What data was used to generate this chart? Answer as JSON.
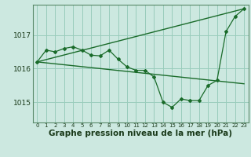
{
  "background_color": "#cce8e0",
  "grid_color": "#99ccbb",
  "line_color": "#1a6b2a",
  "xlabel": "Graphe pression niveau de la mer (hPa)",
  "xlabel_fontsize": 7.5,
  "ylabel_ticks": [
    1015,
    1016,
    1017
  ],
  "xtick_labels": [
    "0",
    "1",
    "2",
    "3",
    "4",
    "5",
    "6",
    "7",
    "8",
    "9",
    "10",
    "11",
    "12",
    "13",
    "14",
    "15",
    "16",
    "17",
    "18",
    "19",
    "20",
    "21",
    "22",
    "23"
  ],
  "xlim": [
    -0.5,
    23.5
  ],
  "ylim": [
    1014.4,
    1017.9
  ],
  "series1": [
    1016.2,
    1016.55,
    1016.5,
    1016.6,
    1016.65,
    1016.55,
    1016.4,
    1016.38,
    1016.55,
    1016.28,
    1016.05,
    1015.95,
    1015.95,
    1015.75,
    1015.0,
    1014.85,
    1015.1,
    1015.05,
    1015.05,
    1015.5,
    1015.65,
    1017.1,
    1017.55,
    1017.78
  ],
  "series2_x": [
    0,
    23
  ],
  "series2_y": [
    1016.2,
    1015.55
  ],
  "series3_x": [
    0,
    23
  ],
  "series3_y": [
    1016.2,
    1017.78
  ],
  "ytick_fontsize": 6.5,
  "xtick_fontsize": 5.0
}
